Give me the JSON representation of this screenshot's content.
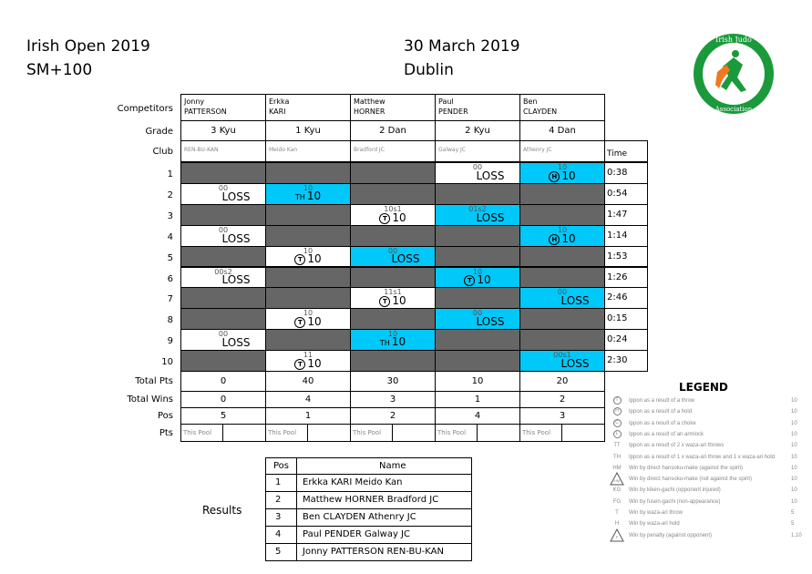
{
  "header": {
    "event": "Irish Open 2019",
    "category": "SM+100",
    "date": "30 March 2019",
    "venue": "Dublin"
  },
  "logo": {
    "text": "Irish Judo Association",
    "colors": [
      "#1a9a3a",
      "#f07820"
    ]
  },
  "row_labels": {
    "competitors": "Competitors",
    "grade": "Grade",
    "club": "Club",
    "total_pts": "Total Pts",
    "total_wins": "Total Wins",
    "pos": "Pos",
    "pts": "Pts",
    "time": "Time"
  },
  "competitors": [
    {
      "first": "Jonny",
      "last": "PATTERSON",
      "grade": "3 Kyu",
      "club": "REN-BU-KAN",
      "total_pts": "0",
      "total_wins": "0",
      "pos": "5",
      "pool": "This Pool"
    },
    {
      "first": "Erkka",
      "last": "KARI",
      "grade": "1 Kyu",
      "club": "Meido Kan",
      "total_pts": "40",
      "total_wins": "4",
      "pos": "1",
      "pool": "This Pool"
    },
    {
      "first": "Matthew",
      "last": "HORNER",
      "grade": "2 Dan",
      "club": "Bradford JC",
      "total_pts": "30",
      "total_wins": "3",
      "pos": "2",
      "pool": "This Pool"
    },
    {
      "first": "Paul",
      "last": "PENDER",
      "grade": "2 Kyu",
      "club": "Galway JC",
      "total_pts": "10",
      "total_wins": "1",
      "pos": "4",
      "pool": "This Pool"
    },
    {
      "first": "Ben",
      "last": "CLAYDEN",
      "grade": "4 Dan",
      "club": "Athenry JC",
      "total_pts": "20",
      "total_wins": "2",
      "pos": "3",
      "pool": "This Pool"
    }
  ],
  "colors": {
    "blue": "#00c8f8",
    "gray": "#666666",
    "white": "#ffffff"
  },
  "contests": [
    {
      "num": "1",
      "time": "0:38",
      "white": {
        "col": 3,
        "score": "00",
        "result": "LOSS"
      },
      "blue": {
        "col": 4,
        "score": "10",
        "icon": "H",
        "result": "10"
      }
    },
    {
      "num": "2",
      "time": "0:54",
      "white": {
        "col": 0,
        "score": "00",
        "result": "LOSS"
      },
      "blue": {
        "col": 1,
        "score": "10",
        "icon": "TH",
        "result": "10"
      }
    },
    {
      "num": "3",
      "time": "1:47",
      "white": {
        "col": 2,
        "score": "10s1",
        "icon": "T",
        "result": "10"
      },
      "blue": {
        "col": 3,
        "score": "01s2",
        "result": "LOSS"
      }
    },
    {
      "num": "4",
      "time": "1:14",
      "white": {
        "col": 0,
        "score": "00",
        "result": "LOSS"
      },
      "blue": {
        "col": 4,
        "score": "10",
        "icon": "H",
        "result": "10"
      }
    },
    {
      "num": "5",
      "time": "1:53",
      "white": {
        "col": 1,
        "score": "10",
        "icon": "T",
        "result": "10"
      },
      "blue": {
        "col": 2,
        "score": "00",
        "result": "LOSS"
      }
    },
    {
      "num": "6",
      "time": "1:26",
      "white": {
        "col": 0,
        "score": "00s2",
        "result": "LOSS"
      },
      "blue": {
        "col": 3,
        "score": "10",
        "icon": "T",
        "result": "10"
      }
    },
    {
      "num": "7",
      "time": "2:46",
      "white": {
        "col": 2,
        "score": "11s1",
        "icon": "T",
        "result": "10"
      },
      "blue": {
        "col": 4,
        "score": "00",
        "result": "LOSS"
      }
    },
    {
      "num": "8",
      "time": "0:15",
      "white": {
        "col": 1,
        "score": "10",
        "icon": "T",
        "result": "10"
      },
      "blue": {
        "col": 3,
        "score": "00",
        "result": "LOSS"
      }
    },
    {
      "num": "9",
      "time": "0:24",
      "white": {
        "col": 0,
        "score": "00",
        "result": "LOSS"
      },
      "blue": {
        "col": 2,
        "score": "10",
        "icon": "TH",
        "result": "10"
      }
    },
    {
      "num": "10",
      "time": "2:30",
      "white": {
        "col": 1,
        "score": "11",
        "icon": "T",
        "result": "10"
      },
      "blue": {
        "col": 4,
        "score": "00s1",
        "result": "LOSS"
      }
    }
  ],
  "legend": {
    "title": "LEGEND",
    "items": [
      {
        "sym": "T",
        "type": "circle",
        "text": "Ippon as a result of a throw",
        "val": "10"
      },
      {
        "sym": "H",
        "type": "circle",
        "text": "Ippon as a result of a hold",
        "val": "10"
      },
      {
        "sym": "C",
        "type": "circle",
        "text": "Ippon as a result of a choke",
        "val": "10"
      },
      {
        "sym": "L",
        "type": "circle",
        "text": "Ippon as a result of an armlock",
        "val": "10"
      },
      {
        "sym": "TT",
        "type": "text",
        "text": "Ippon as a result of 2 x waza-ari throws",
        "val": "10"
      },
      {
        "sym": "TH",
        "type": "text",
        "text": "Ippon as a result of 1 x waza-ari throw and 1 x waza-ari hold",
        "val": "10"
      },
      {
        "sym": "HM",
        "type": "text",
        "text": "Win by direct hansoku-make (against the spirit)",
        "val": "10"
      },
      {
        "sym": "HM",
        "type": "triangle",
        "text": "Win by direct hansoku-make (not against the spirit)",
        "val": "10"
      },
      {
        "sym": "KG",
        "type": "text",
        "text": "Win by kiken-gachi (opponent injured)",
        "val": "10"
      },
      {
        "sym": "FG",
        "type": "text",
        "text": "Win by fusen-gachi (non-appearance)",
        "val": "10"
      },
      {
        "sym": "T",
        "type": "text",
        "text": "Win by waza-ari throw",
        "val": "5"
      },
      {
        "sym": "H",
        "type": "text",
        "text": "Win by waza-ari hold",
        "val": "5"
      },
      {
        "sym": "P",
        "type": "triangle",
        "text": "Win by penalty (against opponent)",
        "val": "1,10"
      }
    ]
  },
  "results": {
    "label": "Results",
    "headers": {
      "pos": "Pos",
      "name": "Name"
    },
    "rows": [
      {
        "pos": "1",
        "name": "Erkka KARI Meido Kan"
      },
      {
        "pos": "2",
        "name": "Matthew HORNER Bradford JC"
      },
      {
        "pos": "3",
        "name": "Ben CLAYDEN Athenry JC"
      },
      {
        "pos": "4",
        "name": "Paul PENDER Galway JC"
      },
      {
        "pos": "5",
        "name": "Jonny PATTERSON REN-BU-KAN"
      }
    ]
  }
}
